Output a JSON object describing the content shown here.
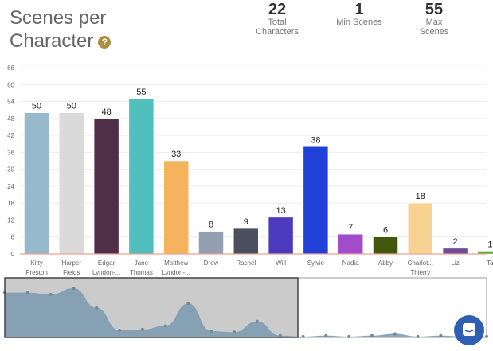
{
  "header": {
    "title_line1": "Scenes per",
    "title_line2": "Character",
    "help_icon": "question-circle-icon"
  },
  "stats": [
    {
      "value": "22",
      "label": "Total Characters"
    },
    {
      "value": "1",
      "label": "Min Scenes"
    },
    {
      "value": "55",
      "label": "Max Scenes"
    }
  ],
  "chart_data": {
    "type": "bar",
    "categories": [
      [
        "Kitty",
        "Preston"
      ],
      [
        "Harper",
        "Fields"
      ],
      [
        "Edgar",
        "Lyndon-..."
      ],
      [
        "Jane",
        "Thomas"
      ],
      [
        "Matthew",
        "Lyndon-..."
      ],
      [
        "Drew",
        ""
      ],
      [
        "Rachel",
        ""
      ],
      [
        "Will",
        ""
      ],
      [
        "Sylvie",
        ""
      ],
      [
        "Nadia",
        ""
      ],
      [
        "Abby",
        ""
      ],
      [
        "Charlot...",
        "Thierry"
      ],
      [
        "Liz",
        ""
      ],
      [
        "Ta",
        ""
      ]
    ],
    "values": [
      50,
      50,
      48,
      55,
      33,
      8,
      9,
      13,
      38,
      7,
      6,
      18,
      2,
      1
    ],
    "colors": [
      "#97b9cc",
      "#dadada",
      "#4f2f47",
      "#52bfbf",
      "#f5b35d",
      "#949fb0",
      "#4a505d",
      "#4d3bbf",
      "#2040d8",
      "#a24ccc",
      "#43580f",
      "#f8d293",
      "#6e4a96",
      "#5aac3a"
    ],
    "ylim": [
      0,
      66
    ],
    "yticks": [
      0,
      6,
      12,
      18,
      24,
      30,
      36,
      42,
      48,
      54,
      60,
      66
    ],
    "grid": true,
    "navigator_values": [
      50,
      50,
      48,
      55,
      33,
      8,
      9,
      13,
      38,
      7,
      6,
      18,
      2,
      1,
      2,
      1,
      2,
      4,
      1,
      2,
      1,
      1
    ]
  }
}
